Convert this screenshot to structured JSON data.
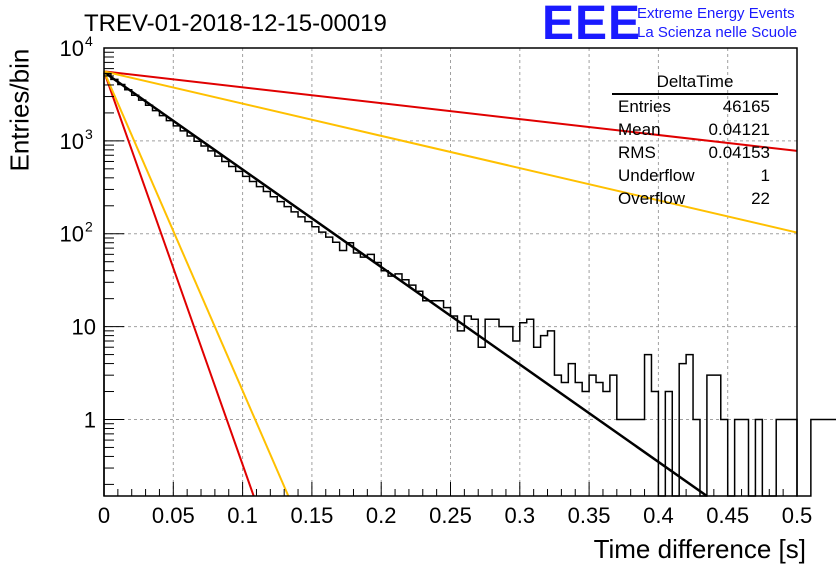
{
  "title": "TREV-01-2018-12-15-00019",
  "logo": {
    "letters": "EEE",
    "line1": "Extreme Energy Events",
    "line2": "La Scienza nelle Scuole"
  },
  "stats": {
    "title": "DeltaTime",
    "rows": [
      {
        "label": "Entries",
        "value": "46165"
      },
      {
        "label": "Mean",
        "value": "0.04121"
      },
      {
        "label": "RMS",
        "value": "0.04153"
      },
      {
        "label": "Underflow",
        "value": "1"
      },
      {
        "label": "Overflow",
        "value": "22"
      }
    ]
  },
  "chart_data": {
    "type": "line",
    "title": "TREV-01-2018-12-15-00019",
    "xlabel": "Time difference [s]",
    "ylabel": "Entries/bin",
    "xlim": [
      0,
      0.5
    ],
    "ylim": [
      0.15,
      10000
    ],
    "yscale": "log",
    "grid": true,
    "xticks": [
      "0",
      "0.05",
      "0.1",
      "0.15",
      "0.2",
      "0.25",
      "0.3",
      "0.35",
      "0.4",
      "0.45",
      "0.5"
    ],
    "yticks": [
      {
        "value": 1,
        "label": "1"
      },
      {
        "value": 10,
        "label": "10"
      },
      {
        "value": 100,
        "label": "10",
        "exp": "2"
      },
      {
        "value": 1000,
        "label": "10",
        "exp": "3"
      },
      {
        "value": 10000,
        "label": "10",
        "exp": "4"
      }
    ],
    "histogram": {
      "bin_width": 0.005,
      "counts": [
        5300,
        4600,
        4050,
        3550,
        3100,
        2750,
        2420,
        2120,
        1870,
        1650,
        1450,
        1280,
        1130,
        990,
        880,
        780,
        685,
        600,
        530,
        470,
        415,
        365,
        322,
        285,
        250,
        222,
        196,
        172,
        152,
        135,
        119,
        104,
        92,
        81,
        66,
        80,
        62,
        56,
        60,
        49,
        40,
        35,
        37,
        32,
        28,
        24,
        19,
        19,
        19,
        16,
        13,
        9,
        13,
        12,
        6,
        12,
        12,
        10,
        10,
        7,
        11,
        12,
        6,
        8,
        9,
        3,
        2.5,
        4,
        2.5,
        2,
        3,
        2.5,
        2,
        3,
        1,
        1,
        1,
        1,
        5,
        2,
        0,
        2,
        0,
        4,
        5,
        1,
        0,
        3,
        3,
        1,
        0,
        1,
        1,
        0,
        1,
        0,
        0,
        1,
        1,
        1,
        0,
        0,
        1,
        1,
        1,
        1,
        0,
        0,
        0,
        1,
        0,
        0,
        0,
        0,
        0,
        0,
        0,
        0,
        0,
        0
      ]
    },
    "series": [
      {
        "color": "#000000",
        "x": [
          0,
          0.435
        ],
        "y": [
          5500,
          0.15
        ]
      },
      {
        "color": "#e00000",
        "x": [
          0,
          0.5
        ],
        "y": [
          5600,
          780
        ]
      },
      {
        "color": "#ffc000",
        "x": [
          0,
          0.5
        ],
        "y": [
          5600,
          103
        ]
      },
      {
        "color": "#e00000",
        "x": [
          0,
          0.108
        ],
        "y": [
          5600,
          0.15
        ]
      },
      {
        "color": "#ffc000",
        "x": [
          0,
          0.133
        ],
        "y": [
          5600,
          0.15
        ]
      }
    ]
  }
}
